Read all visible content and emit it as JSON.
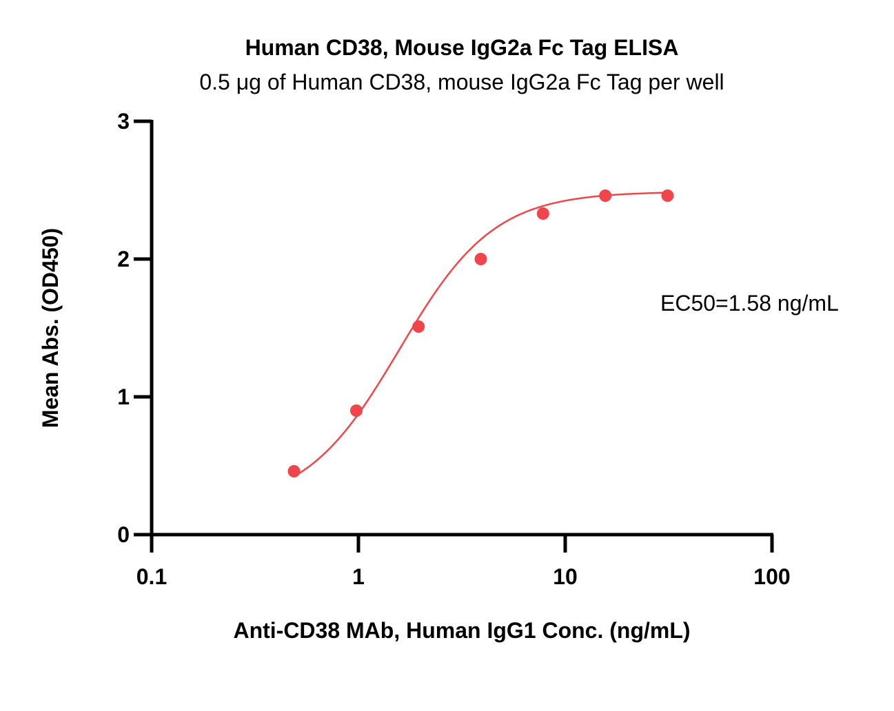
{
  "chart_data": {
    "type": "scatter",
    "title": "Human CD38, Mouse IgG2a Fc Tag ELISA",
    "subtitle": "0.5 μg of Human CD38, mouse IgG2a Fc Tag per well",
    "xlabel": "Anti-CD38 MAb, Human IgG1 Conc. (ng/mL)",
    "ylabel": "Mean Abs. (OD450)",
    "x_scale": "log",
    "xlim": [
      0.1,
      100
    ],
    "ylim": [
      0,
      3
    ],
    "x_ticks": [
      "0.1",
      "1",
      "10",
      "100"
    ],
    "y_ticks": [
      "0",
      "1",
      "2",
      "3"
    ],
    "grid": false,
    "annotation": "EC50=1.58 ng/mL",
    "series": [
      {
        "color": "#f0454a",
        "x": [
          0.488,
          0.977,
          1.953,
          3.906,
          7.813,
          15.625,
          31.25
        ],
        "y": [
          0.46,
          0.9,
          1.51,
          2.0,
          2.33,
          2.46,
          2.46
        ]
      }
    ],
    "fit_curve": {
      "model": "4PL",
      "bottom": 0.2,
      "top": 2.49,
      "ec50": 1.58,
      "hill": 1.9
    }
  }
}
